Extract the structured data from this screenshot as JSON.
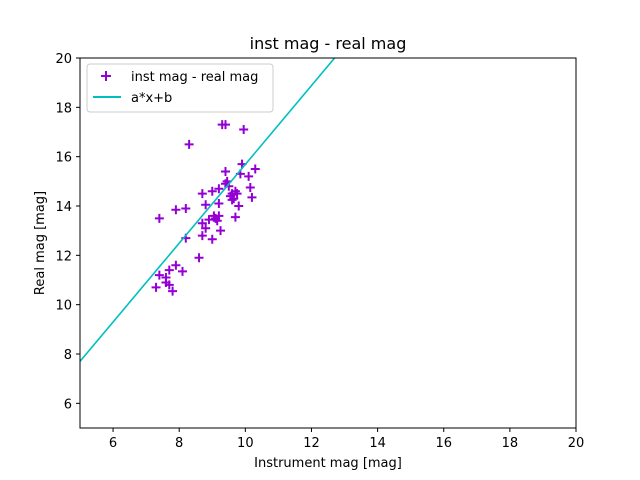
{
  "chart_data": {
    "type": "scatter",
    "title": "inst mag - real mag",
    "xlabel": "Instrument mag [mag]",
    "ylabel": "Real mag [mag]",
    "xlim": [
      5,
      20
    ],
    "ylim": [
      5,
      20
    ],
    "xticks": [
      6,
      8,
      10,
      12,
      14,
      16,
      18,
      20
    ],
    "yticks": [
      6,
      8,
      10,
      12,
      14,
      16,
      18,
      20
    ],
    "grid": false,
    "legend_position": "top-left",
    "series": [
      {
        "name": "inst mag - real mag",
        "kind": "scatter",
        "marker": "plus",
        "color": "#9400d3",
        "points": [
          [
            7.3,
            10.7
          ],
          [
            7.4,
            11.2
          ],
          [
            7.6,
            11.1
          ],
          [
            7.6,
            10.9
          ],
          [
            7.7,
            10.8
          ],
          [
            7.7,
            11.4
          ],
          [
            7.8,
            10.55
          ],
          [
            7.9,
            11.6
          ],
          [
            8.1,
            11.35
          ],
          [
            7.4,
            13.5
          ],
          [
            7.9,
            13.85
          ],
          [
            8.2,
            13.9
          ],
          [
            8.2,
            12.7
          ],
          [
            8.3,
            16.5
          ],
          [
            8.6,
            11.9
          ],
          [
            8.7,
            14.5
          ],
          [
            8.8,
            14.05
          ],
          [
            8.7,
            13.3
          ],
          [
            8.7,
            12.8
          ],
          [
            8.8,
            13.1
          ],
          [
            8.9,
            13.45
          ],
          [
            9.0,
            14.6
          ],
          [
            9.0,
            12.65
          ],
          [
            9.05,
            13.6
          ],
          [
            9.1,
            13.5
          ],
          [
            9.15,
            13.4
          ],
          [
            9.2,
            13.6
          ],
          [
            9.2,
            14.7
          ],
          [
            9.2,
            14.1
          ],
          [
            9.25,
            13.0
          ],
          [
            9.3,
            17.3
          ],
          [
            9.4,
            17.3
          ],
          [
            9.4,
            15.4
          ],
          [
            9.4,
            14.9
          ],
          [
            9.45,
            15.0
          ],
          [
            9.5,
            14.8
          ],
          [
            9.55,
            14.4
          ],
          [
            9.6,
            14.25
          ],
          [
            9.6,
            14.5
          ],
          [
            9.65,
            14.3
          ],
          [
            9.7,
            13.55
          ],
          [
            9.7,
            14.6
          ],
          [
            9.75,
            14.5
          ],
          [
            9.8,
            14.0
          ],
          [
            9.85,
            15.3
          ],
          [
            9.9,
            15.7
          ],
          [
            9.95,
            17.1
          ],
          [
            10.1,
            15.2
          ],
          [
            10.15,
            14.75
          ],
          [
            10.2,
            14.35
          ],
          [
            10.3,
            15.5
          ]
        ]
      },
      {
        "name": "a*x+b",
        "kind": "line",
        "color": "#00bfbf",
        "points": [
          [
            5.0,
            7.7
          ],
          [
            12.7,
            20.0
          ]
        ]
      }
    ]
  }
}
